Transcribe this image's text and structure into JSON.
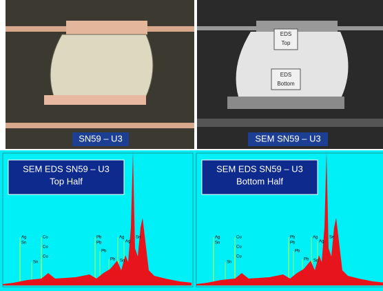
{
  "micrographs": [
    {
      "caption": "SN59 – U3"
    },
    {
      "caption": "SEM SN59 – U3",
      "boxes": [
        "EDS\nTop",
        "EDS\nBottom"
      ]
    }
  ],
  "spectra": [
    {
      "title": [
        "SEM EDS SN59 – U3",
        "Top Half"
      ],
      "peak_labels": [
        "Ag",
        "Sn",
        "Cu",
        "Cu",
        "Cu",
        "Sn",
        "Pb",
        "Pb",
        "Pb",
        "Ag",
        "Sn",
        "Ag",
        "Pb",
        "Sn"
      ]
    },
    {
      "title": [
        "SEM EDS SN59 – U3",
        "Bottom Half"
      ],
      "peak_labels": [
        "Ag",
        "Sn",
        "Cu",
        "Cu",
        "Cu",
        "Sn",
        "Pb",
        "Pb",
        "Pb",
        "Ag",
        "Sn",
        "Ag",
        "Pb",
        "Sn"
      ]
    }
  ]
}
